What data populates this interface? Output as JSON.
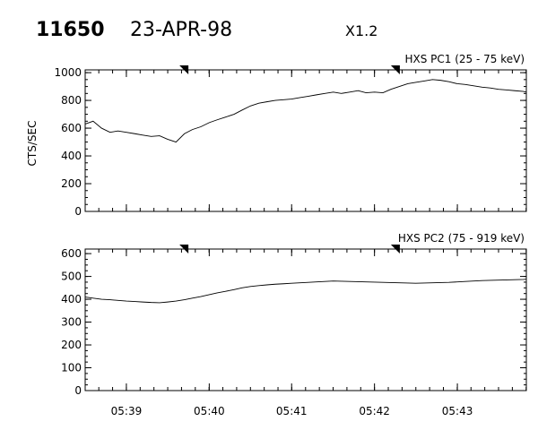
{
  "header": {
    "flare_number": "11650",
    "date": "23-APR-98",
    "class": "X1.2"
  },
  "chart_data": [
    {
      "type": "line",
      "title": "HXS PC1 (25 - 75 keV)",
      "ylabel": "CTS/SEC",
      "xlabel": "",
      "xlim": [
        5.6417,
        5.7306
      ],
      "ylim": [
        0,
        1020
      ],
      "yticks": [
        0,
        200,
        400,
        600,
        800,
        1000
      ],
      "xticks": [
        {
          "t": 5.65,
          "label": "05:39"
        },
        {
          "t": 5.6667,
          "label": "05:40"
        },
        {
          "t": 5.6833,
          "label": "05:41"
        },
        {
          "t": 5.7,
          "label": "05:42"
        },
        {
          "t": 5.7167,
          "label": "05:43"
        }
      ],
      "markers_at": [
        5.6616,
        5.7042
      ],
      "series": [
        {
          "x": [
            5.6417,
            5.6433,
            5.645,
            5.6467,
            5.6483,
            5.65,
            5.6517,
            5.6533,
            5.655,
            5.6567,
            5.6583,
            5.66,
            5.6617,
            5.6633,
            5.665,
            5.6667,
            5.6683,
            5.67,
            5.6717,
            5.6733,
            5.675,
            5.6767,
            5.6783,
            5.68,
            5.6817,
            5.6833,
            5.685,
            5.6867,
            5.6883,
            5.69,
            5.6917,
            5.6933,
            5.695,
            5.6967,
            5.6983,
            5.7,
            5.7017,
            5.7033,
            5.705,
            5.7067,
            5.7083,
            5.71,
            5.7117,
            5.7133,
            5.715,
            5.7167,
            5.7183,
            5.72,
            5.7217,
            5.7233,
            5.725,
            5.7267,
            5.7283,
            5.73,
            5.7306
          ],
          "values": [
            630,
            650,
            600,
            570,
            580,
            570,
            560,
            550,
            540,
            545,
            520,
            500,
            560,
            590,
            610,
            640,
            660,
            680,
            700,
            730,
            760,
            780,
            790,
            800,
            805,
            810,
            820,
            830,
            840,
            850,
            860,
            850,
            860,
            870,
            855,
            860,
            855,
            880,
            900,
            920,
            930,
            940,
            950,
            945,
            935,
            920,
            915,
            905,
            895,
            890,
            880,
            875,
            870,
            865,
            860
          ]
        }
      ]
    },
    {
      "type": "line",
      "title": "HXS PC2 (75 - 919 keV)",
      "ylabel": "",
      "xlabel": "",
      "xlim": [
        5.6417,
        5.7306
      ],
      "ylim": [
        0,
        620
      ],
      "yticks": [
        0,
        100,
        200,
        300,
        400,
        500,
        600
      ],
      "xticks": [
        {
          "t": 5.65,
          "label": "05:39"
        },
        {
          "t": 5.6667,
          "label": "05:40"
        },
        {
          "t": 5.6833,
          "label": "05:41"
        },
        {
          "t": 5.7,
          "label": "05:42"
        },
        {
          "t": 5.7167,
          "label": "05:43"
        }
      ],
      "markers_at": [
        5.6616,
        5.7042
      ],
      "series": [
        {
          "x": [
            5.6417,
            5.6433,
            5.645,
            5.6467,
            5.6483,
            5.65,
            5.6517,
            5.6533,
            5.655,
            5.6567,
            5.6583,
            5.66,
            5.6617,
            5.6633,
            5.665,
            5.6667,
            5.6683,
            5.67,
            5.6717,
            5.6733,
            5.675,
            5.6767,
            5.6783,
            5.68,
            5.6817,
            5.6833,
            5.685,
            5.6867,
            5.6883,
            5.69,
            5.6917,
            5.6933,
            5.695,
            5.6967,
            5.6983,
            5.7,
            5.7017,
            5.7033,
            5.705,
            5.7067,
            5.7083,
            5.71,
            5.7117,
            5.7133,
            5.715,
            5.7167,
            5.7183,
            5.72,
            5.7217,
            5.7233,
            5.725,
            5.7267,
            5.7283,
            5.73,
            5.7306
          ],
          "values": [
            410,
            405,
            400,
            398,
            395,
            392,
            390,
            388,
            386,
            385,
            388,
            392,
            398,
            405,
            412,
            420,
            428,
            435,
            442,
            450,
            456,
            460,
            463,
            466,
            468,
            470,
            472,
            474,
            476,
            478,
            480,
            479,
            478,
            477,
            476,
            475,
            474,
            473,
            472,
            471,
            470,
            471,
            472,
            473,
            474,
            476,
            478,
            480,
            482,
            483,
            484,
            485,
            486,
            487,
            488
          ]
        }
      ]
    }
  ]
}
